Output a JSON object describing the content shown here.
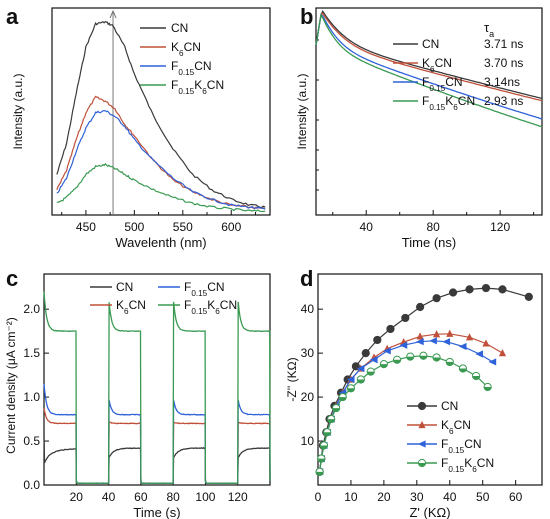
{
  "panels": {
    "a": "a",
    "b": "b",
    "c": "c",
    "d": "d"
  },
  "colors": {
    "CN": "#3a3a3a",
    "K6CN": "#c0503a",
    "F015CN": "#2f62d8",
    "F015K6CN": "#3a9a52"
  },
  "legend": {
    "CN": "CN",
    "K": "K",
    "F": "F",
    "sub6": "6",
    "sub015": "0.15"
  },
  "tau_header": "τ",
  "tau_sub": "a",
  "chart_data": [
    {
      "panel": "a",
      "type": "line",
      "xlabel": "Wavelenth (nm)",
      "ylabel": "Intensity (a.u.)",
      "xlim": [
        415,
        640
      ],
      "xticks": [
        450,
        500,
        550,
        600
      ],
      "yticks_labeled": false,
      "vertical_marker_x": 478,
      "series": [
        {
          "name": "CN",
          "x": [
            420,
            430,
            440,
            450,
            460,
            470,
            478,
            490,
            500,
            520,
            540,
            560,
            580,
            600,
            620,
            635
          ],
          "y": [
            0.2,
            0.36,
            0.62,
            0.86,
            0.98,
            0.99,
            0.97,
            0.86,
            0.72,
            0.5,
            0.33,
            0.2,
            0.12,
            0.07,
            0.04,
            0.03
          ]
        },
        {
          "name": "K6CN",
          "x": [
            420,
            430,
            440,
            450,
            460,
            470,
            480,
            490,
            500,
            520,
            540,
            560,
            580,
            600,
            620,
            635
          ],
          "y": [
            0.12,
            0.22,
            0.38,
            0.52,
            0.6,
            0.58,
            0.54,
            0.46,
            0.4,
            0.27,
            0.17,
            0.11,
            0.07,
            0.04,
            0.03,
            0.02
          ]
        },
        {
          "name": "F0.15CN",
          "x": [
            420,
            430,
            440,
            450,
            460,
            470,
            480,
            490,
            500,
            520,
            540,
            560,
            580,
            600,
            620,
            635
          ],
          "y": [
            0.1,
            0.18,
            0.32,
            0.44,
            0.52,
            0.53,
            0.5,
            0.45,
            0.38,
            0.27,
            0.18,
            0.11,
            0.07,
            0.04,
            0.03,
            0.02
          ]
        },
        {
          "name": "F0.15K6CN",
          "x": [
            420,
            430,
            440,
            450,
            460,
            470,
            480,
            490,
            500,
            520,
            540,
            560,
            580,
            600,
            620,
            635
          ],
          "y": [
            0.05,
            0.08,
            0.13,
            0.2,
            0.24,
            0.25,
            0.23,
            0.2,
            0.17,
            0.12,
            0.08,
            0.05,
            0.03,
            0.02,
            0.01,
            0.01
          ]
        }
      ]
    },
    {
      "panel": "b",
      "type": "line",
      "xlabel": "Time (ns)",
      "ylabel": "Intensity (a.u.)",
      "xlim": [
        10,
        145
      ],
      "xticks": [
        40,
        80,
        120
      ],
      "y_scale": "log",
      "yticks_labeled": false,
      "tau_values": [
        "3.71 ns",
        "3.70 ns",
        "3.14ns",
        "2.93 ns"
      ],
      "series": [
        {
          "name": "CN",
          "tau": 3.71
        },
        {
          "name": "K6CN",
          "tau": 3.7
        },
        {
          "name": "F0.15CN",
          "tau": 3.14
        },
        {
          "name": "F0.15K6CN",
          "tau": 2.93
        }
      ]
    },
    {
      "panel": "c",
      "type": "line",
      "xlabel": "Time (s)",
      "ylabel": "Current density (μA cm⁻²)",
      "xlim": [
        0,
        140
      ],
      "ylim": [
        0,
        2.4
      ],
      "xticks": [
        20,
        40,
        60,
        80,
        100,
        120
      ],
      "yticks": [
        0.0,
        0.5,
        1.0,
        1.5,
        2.0
      ],
      "light_on_intervals": [
        [
          0,
          20
        ],
        [
          40,
          60
        ],
        [
          80,
          100
        ],
        [
          120,
          140
        ]
      ],
      "series": [
        {
          "name": "CN",
          "on_value": 0.42,
          "off_value": 0.02
        },
        {
          "name": "K6CN",
          "on_value": 0.7,
          "off_value": 0.02
        },
        {
          "name": "F0.15CN",
          "on_value": 0.8,
          "off_value": 0.02
        },
        {
          "name": "F0.15K6CN",
          "on_value": 1.75,
          "off_value": 0.02
        }
      ]
    },
    {
      "panel": "d",
      "type": "scatter",
      "xlabel": "Z' (KΩ)",
      "ylabel": "-Z'' (KΩ)",
      "xlim": [
        0,
        68
      ],
      "ylim": [
        0,
        48
      ],
      "xticks": [
        0,
        10,
        20,
        30,
        40,
        50,
        60
      ],
      "yticks": [
        0,
        10,
        20,
        30,
        40
      ],
      "series": [
        {
          "name": "CN",
          "marker": "circle",
          "x": [
            0.5,
            1,
            1.5,
            2.5,
            3.5,
            5,
            7,
            9,
            11.5,
            14.5,
            18,
            22,
            26.5,
            31,
            36,
            41,
            46,
            51,
            56,
            64
          ],
          "y": [
            3,
            6,
            9,
            12,
            15,
            18,
            21,
            24,
            27,
            30,
            33,
            35.5,
            38,
            40.5,
            42.5,
            43.8,
            44.5,
            44.8,
            44.5,
            42.8
          ]
        },
        {
          "name": "K6CN",
          "marker": "triangle-up",
          "x": [
            0.5,
            1,
            1.8,
            2.8,
            4,
            5.5,
            7.5,
            10,
            13,
            17,
            21,
            26,
            31,
            36,
            40,
            46,
            51,
            56
          ],
          "y": [
            3,
            6,
            9,
            12,
            15,
            18,
            21,
            24,
            26.5,
            29,
            31,
            32.5,
            33.8,
            34.3,
            34.4,
            33.6,
            32.2,
            30
          ]
        },
        {
          "name": "F0.15CN",
          "marker": "triangle-left",
          "x": [
            0.5,
            1,
            1.8,
            2.8,
            4,
            5.5,
            7.5,
            10,
            13,
            17,
            21,
            26,
            31,
            35,
            39,
            44,
            49,
            53
          ],
          "y": [
            3,
            6,
            9,
            12,
            15,
            18,
            21,
            24,
            26.5,
            28.5,
            30.5,
            31.8,
            32.6,
            32.8,
            32.6,
            31.5,
            29.8,
            28
          ]
        },
        {
          "name": "F0.15K6CN",
          "marker": "circle-half",
          "x": [
            0.5,
            1,
            1.8,
            2.8,
            4,
            5.5,
            7.5,
            10,
            13,
            16,
            20,
            24,
            28,
            32,
            36,
            40,
            44,
            48,
            51.5
          ],
          "y": [
            3,
            6,
            9,
            12,
            15,
            17.5,
            20,
            22,
            24,
            25.8,
            27.5,
            28.5,
            29.2,
            29.4,
            29,
            28,
            26.5,
            24.8,
            22.3
          ]
        }
      ]
    }
  ]
}
